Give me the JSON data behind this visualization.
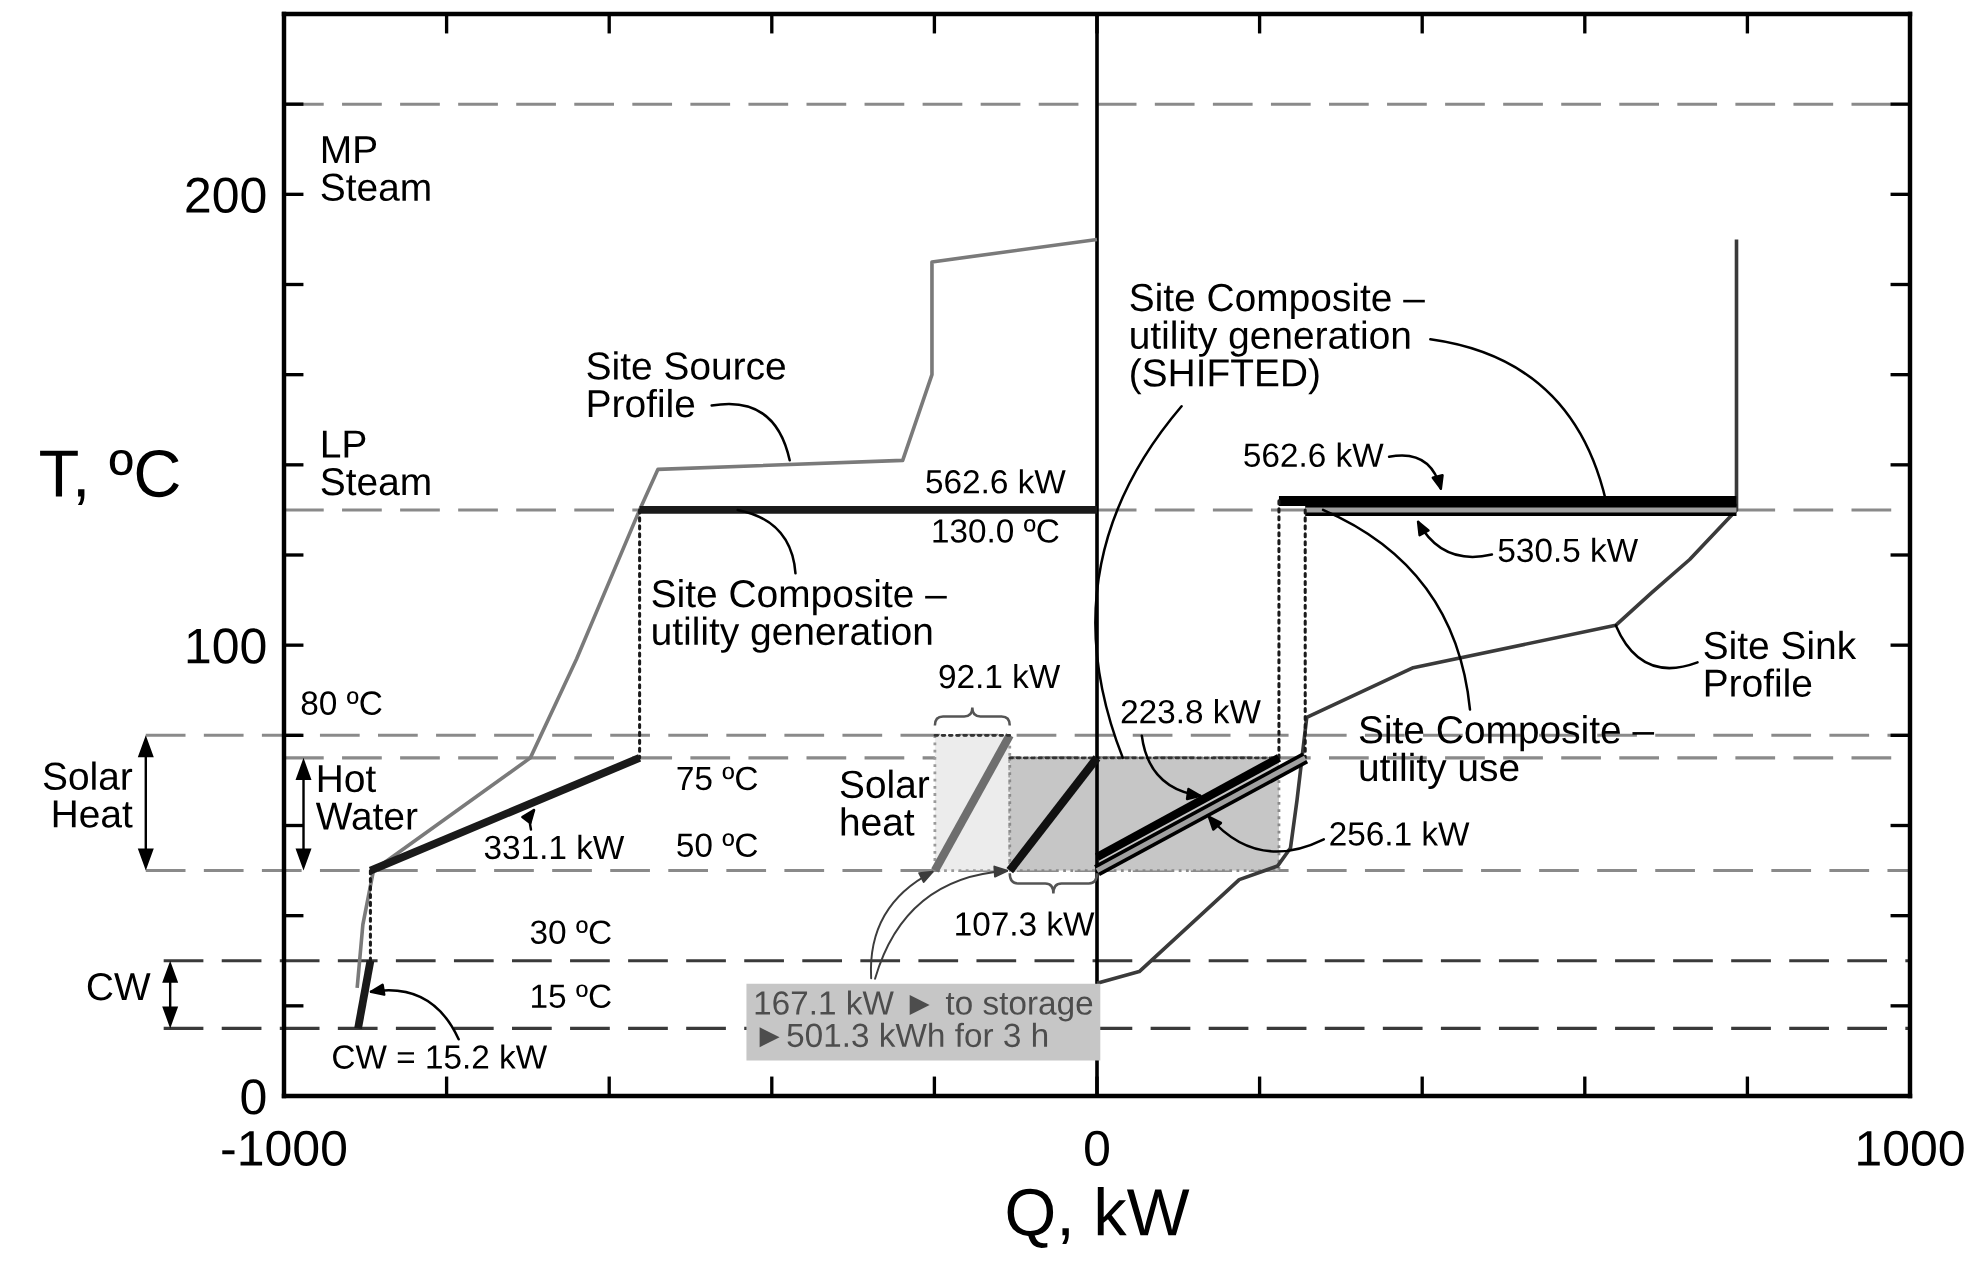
{
  "chart_data": {
    "type": "line",
    "xlabel": "Q, kW",
    "ylabel": "T, ºC",
    "xlim": [
      -1000,
      1000
    ],
    "xticks": [
      -1000,
      {
        "value": -800,
        "label": null
      },
      {
        "value": -600,
        "label": null
      },
      {
        "value": -400,
        "label": null
      },
      {
        "value": -200,
        "label": null
      },
      0,
      {
        "value": 200,
        "label": null
      },
      {
        "value": 400,
        "label": null
      },
      {
        "value": 600,
        "label": null
      },
      {
        "value": 800,
        "label": null
      },
      1000
    ],
    "ylim": [
      0,
      240
    ],
    "yticks": [
      0,
      {
        "value": 20,
        "label": null
      },
      {
        "value": 40,
        "label": null
      },
      {
        "value": 60,
        "label": null
      },
      {
        "value": 80,
        "label": null
      },
      100,
      {
        "value": 120,
        "label": null
      },
      {
        "value": 140,
        "label": null
      },
      {
        "value": 160,
        "label": null
      },
      {
        "value": 180,
        "label": null
      },
      200,
      {
        "value": 220,
        "label": null
      }
    ],
    "series": [
      {
        "color": "#7a7a7a",
        "x": [
          -910,
          -903,
          -890,
          -697,
          -640,
          -562.6,
          -540,
          -239,
          -203,
          -203,
          0
        ],
        "values": [
          24,
          38,
          50,
          75,
          97,
          130,
          139,
          141,
          160,
          185,
          190
        ]
      },
      {
        "color": "#3a3a3a",
        "x": [
          0,
          52,
          175,
          222,
          238,
          246,
          258,
          389,
          638,
          682,
          729,
          786.6,
          786.6
        ],
        "values": [
          25,
          27.6,
          48,
          51,
          55,
          65.6,
          84,
          95,
          104.4,
          111.6,
          119,
          130,
          190
        ]
      },
      {
        "color": "#1a1a1a",
        "x": [
          -562.6,
          0
        ],
        "values": [
          130,
          130
        ]
      },
      {
        "color": "#1a1a1a",
        "line_style": "dotted",
        "x": [
          -562.6,
          -562.6
        ],
        "values": [
          130,
          75
        ]
      },
      {
        "color": "#1a1a1a",
        "x": [
          -893.7,
          -562.6
        ],
        "values": [
          50,
          75
        ]
      },
      {
        "color": "#1a1a1a",
        "line_style": "dotted",
        "x": [
          -893.7,
          -893.7
        ],
        "values": [
          50,
          30
        ]
      },
      {
        "color": "#1a1a1a",
        "x": [
          -908.9,
          -893.7
        ],
        "values": [
          15,
          30
        ]
      },
      {
        "color": "#000000",
        "x": [
          223.8,
          786.4
        ],
        "values": [
          132,
          132
        ]
      },
      {
        "color": "#1a1a1a",
        "line_style": "dotted",
        "x": [
          223.8,
          223.8
        ],
        "values": [
          132,
          75
        ]
      },
      {
        "color": "#a0a0a0",
        "x": [
          256.1,
          786.6
        ],
        "values": [
          130,
          130
        ]
      },
      {
        "color": "#1a1a1a",
        "line_style": "dotted",
        "x": [
          256.1,
          256.1
        ],
        "values": [
          130,
          75
        ]
      },
      {
        "color": "#000000",
        "x": [
          0,
          223.8
        ],
        "values": [
          53,
          75
        ]
      },
      {
        "color": "#a0a0a0",
        "x": [
          0,
          256.1
        ],
        "values": [
          50,
          75
        ]
      },
      {
        "color": "#6e6e6e",
        "x": [
          -199.4,
          -107.3
        ],
        "values": [
          50,
          80
        ]
      },
      {
        "color": "#111111",
        "x": [
          -107.3,
          0
        ],
        "values": [
          50,
          75
        ]
      },
      {
        "color": "#333333",
        "line_style": "dotted",
        "x": [
          -199.4,
          -107.3
        ],
        "values": [
          80,
          80
        ],
        "lower": [
          50,
          50
        ],
        "upper": [
          80,
          80
        ]
      },
      {
        "color": "#333333",
        "line_style": "dotted",
        "x": [
          -107.3,
          223.8
        ],
        "values": [
          75,
          75
        ],
        "lower": [
          50,
          50
        ],
        "upper": [
          75,
          75
        ]
      }
    ],
    "ref_lines": [
      {
        "axis": "y",
        "value": 220,
        "label": "MP\nSteam",
        "color": "#8a8a8a",
        "line_style": "dashed"
      },
      {
        "axis": "y",
        "value": 130,
        "label": "LP\nSteam",
        "color": "#8a8a8a",
        "line_style": "dashed"
      },
      {
        "axis": "y",
        "value": 80,
        "label": "80 ºC",
        "color": "#8a8a8a",
        "line_style": "dashed"
      },
      {
        "axis": "y",
        "value": 75,
        "label": "75 ºC",
        "color": "#8a8a8a",
        "line_style": "dashed"
      },
      {
        "axis": "y",
        "value": 50,
        "label": "50 ºC",
        "color": "#8a8a8a",
        "line_style": "dashed"
      },
      {
        "axis": "y",
        "value": 30,
        "label": "30 ºC",
        "color": "#3a3a3a",
        "line_style": "dashed"
      },
      {
        "axis": "y",
        "value": 15,
        "label": "15 ºC",
        "color": "#3a3a3a",
        "line_style": "dashed"
      },
      {
        "axis": "x",
        "value": 0,
        "color": "#000000",
        "line_style": "solid"
      }
    ],
    "annotations": [
      {
        "text": "331.1 kW",
        "x": -690,
        "y": 64
      },
      {
        "text": "CW = 15.2 kW",
        "x": -897,
        "y": 23
      },
      {
        "text": "Site Source\nProfile",
        "x": -378,
        "y": 141
      },
      {
        "text": "562.6 kW",
        "x": -125,
        "y": 130
      },
      {
        "text": "130.0 ºC",
        "x": -125,
        "y": 130
      },
      {
        "text": "Site Composite –\nutility generation",
        "x": -442,
        "y": 130
      },
      {
        "text": "92.1 kW",
        "x": -153.4,
        "y": 80
      },
      {
        "text": "Solar\nheat",
        "x": -199.4,
        "y": 65
      },
      {
        "text": "107.3 kW",
        "x": -53.7,
        "y": 50
      },
      {
        "text": "167.1 kW ► to storage\n►501.3 kWh for 3 h",
        "x": -199.4,
        "y": 50
      },
      {
        "text": "223.8 kW",
        "x": 131,
        "y": 66.5
      },
      {
        "text": "256.1 kW",
        "x": 135,
        "y": 62.5
      },
      {
        "text": "Site Composite –\nutility generation\n(SHIFTED)",
        "x": 626,
        "y": 132
      },
      {
        "text": "562.6 kW",
        "x": 424,
        "y": 134
      },
      {
        "text": "530.5 kW",
        "x": 393,
        "y": 128
      },
      {
        "text": "Site Composite –\nutility use",
        "x": 278,
        "y": 130
      },
      {
        "text": "Site Sink\nProfile",
        "x": 638,
        "y": 104.4
      },
      "Solar\nHeat",
      {
        "text": "Hot\nWater",
        "x": -976,
        "y": 75
      },
      "CW"
    ]
  }
}
